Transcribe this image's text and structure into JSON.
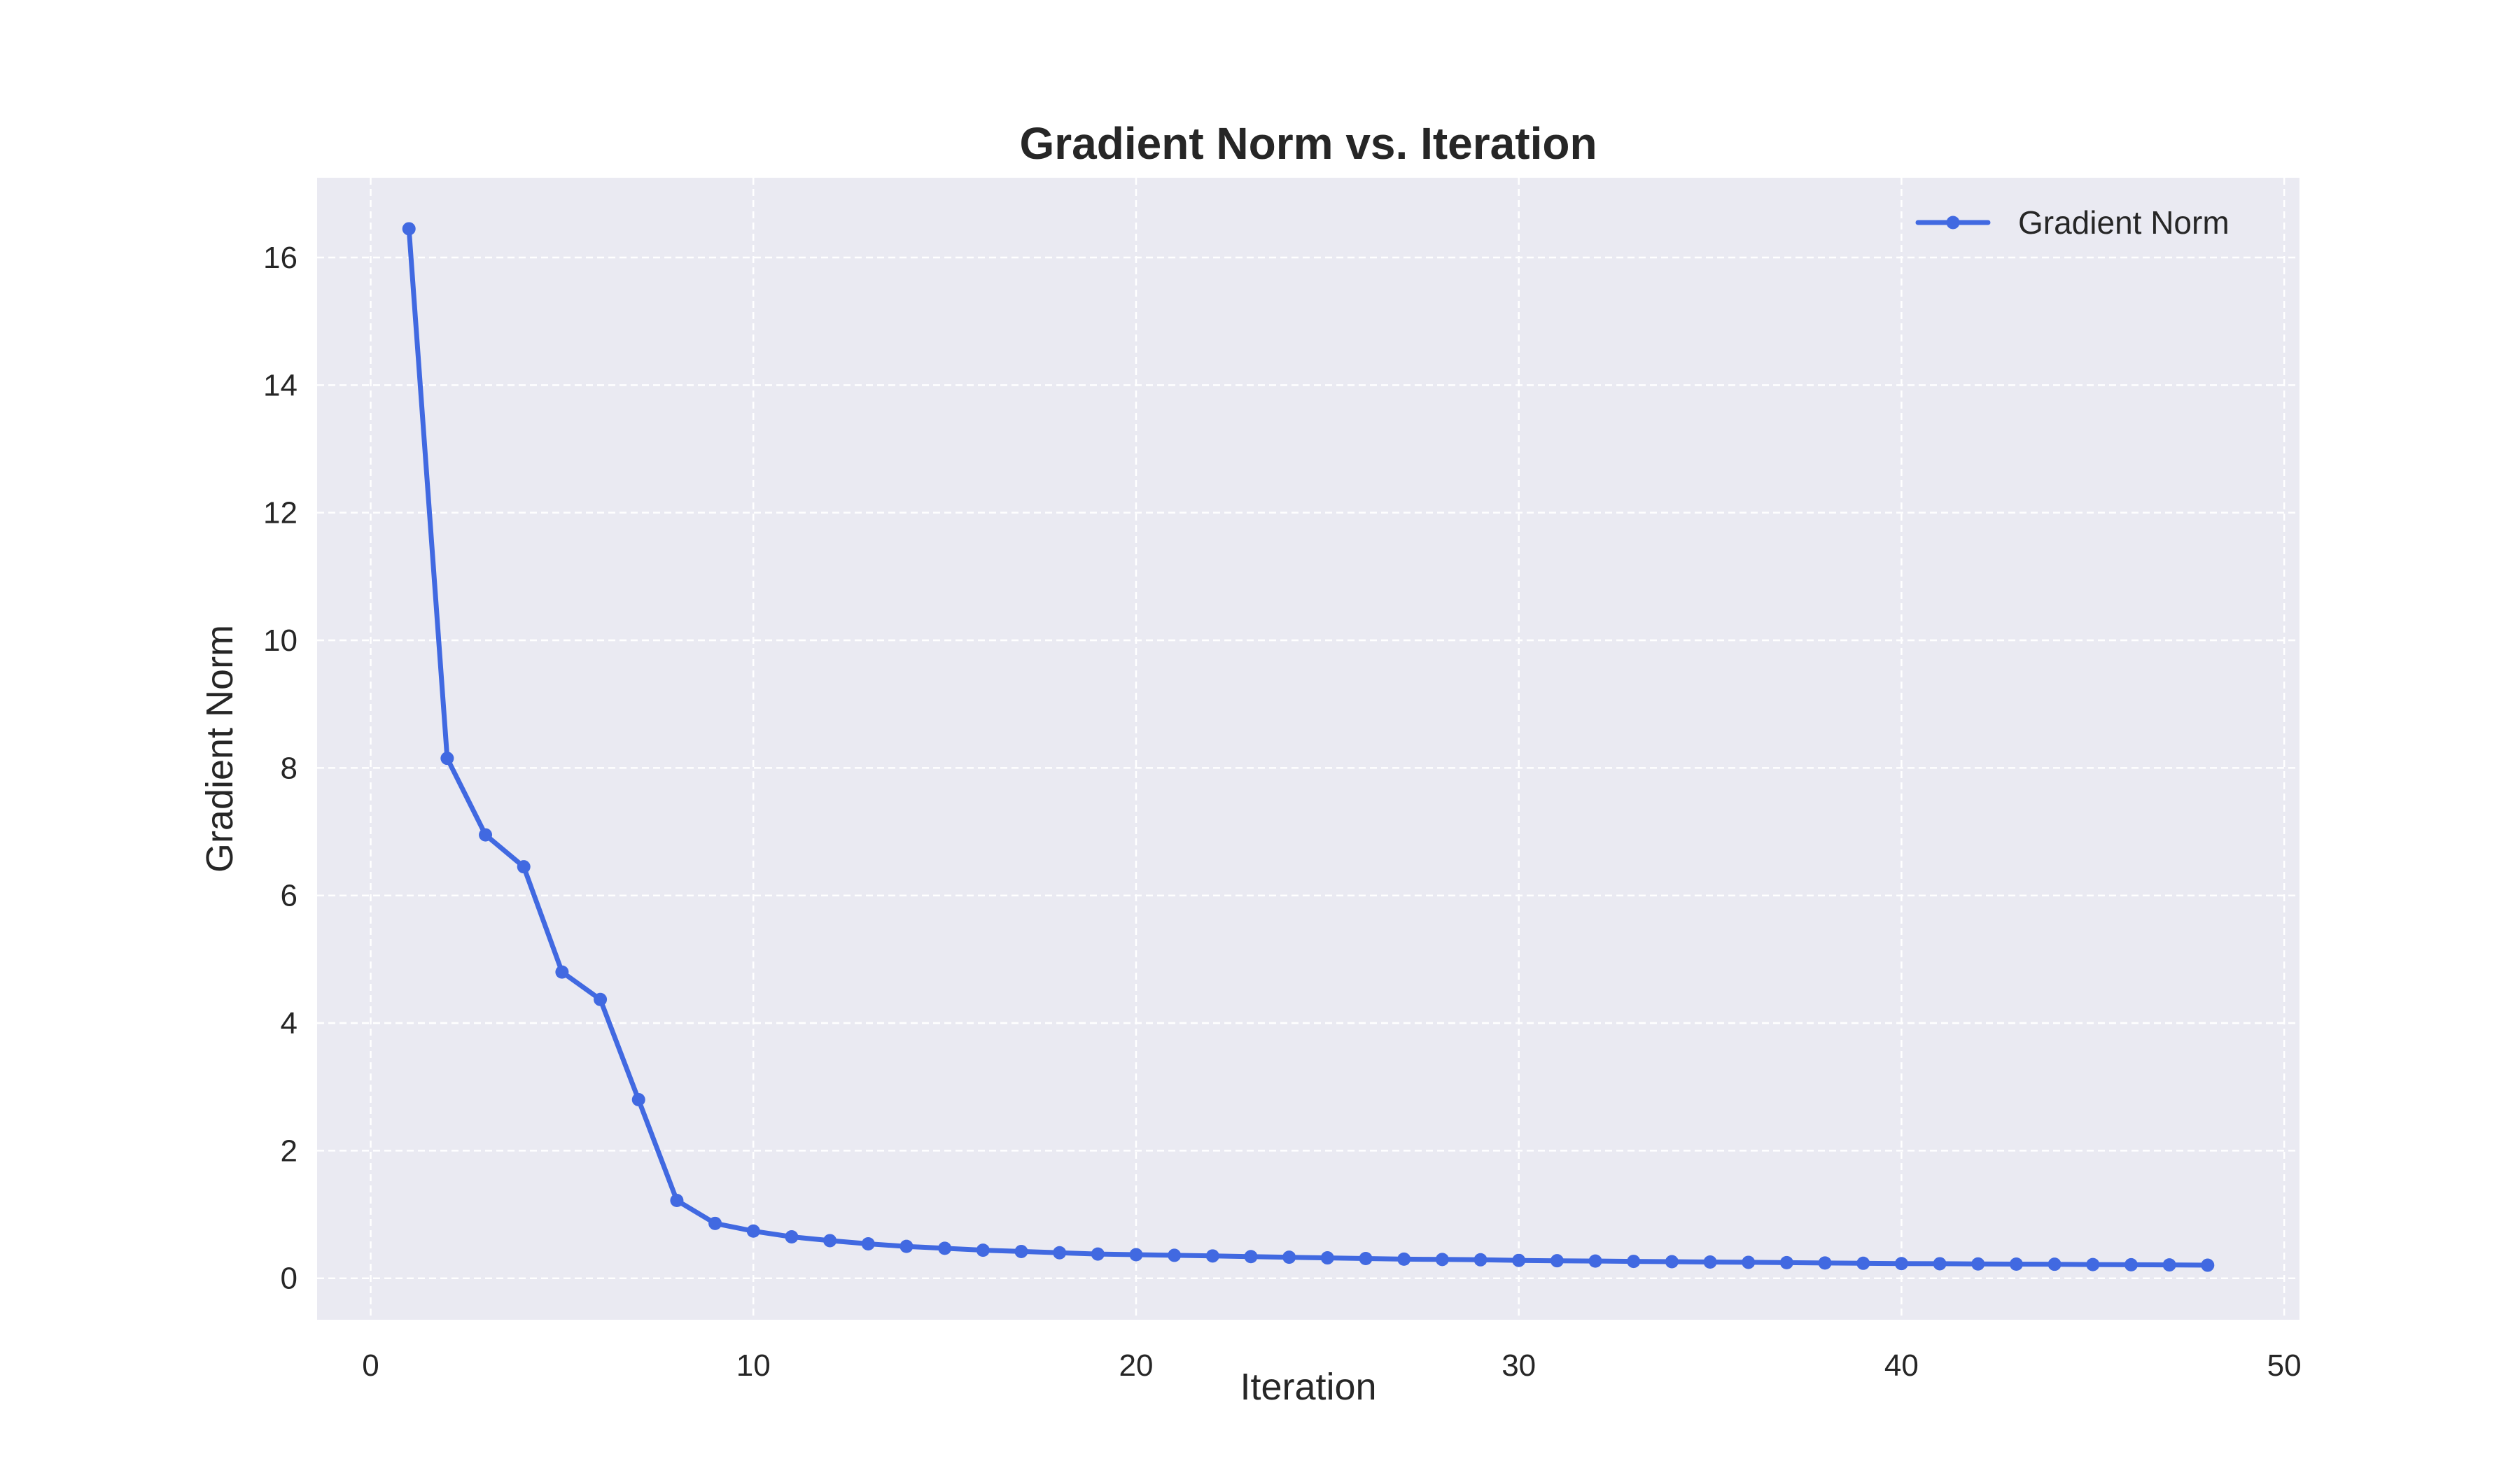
{
  "chart_data": {
    "type": "line",
    "title": "Gradient Norm vs. Iteration",
    "xlabel": "Iteration",
    "ylabel": "Gradient Norm",
    "xlim": [
      -1.4,
      50.4
    ],
    "ylim": [
      -0.65,
      17.25
    ],
    "xticks": [
      0,
      10,
      20,
      30,
      40,
      50
    ],
    "yticks": [
      0,
      2,
      4,
      6,
      8,
      10,
      12,
      14,
      16
    ],
    "grid": true,
    "legend_position": "top-right",
    "colors": {
      "line": "#4169E1",
      "plot_background": "#EAEAF2",
      "grid": "#ffffff"
    },
    "series": [
      {
        "name": "Gradient Norm",
        "x": [
          1,
          2,
          3,
          4,
          5,
          6,
          7,
          8,
          9,
          10,
          11,
          12,
          13,
          14,
          15,
          16,
          17,
          18,
          19,
          20,
          21,
          22,
          23,
          24,
          25,
          26,
          27,
          28,
          29,
          30,
          31,
          32,
          33,
          34,
          35,
          36,
          37,
          38,
          39,
          40,
          41,
          42,
          43,
          44,
          45,
          46,
          47,
          48
        ],
        "y": [
          16.45,
          8.15,
          6.95,
          6.45,
          4.8,
          4.37,
          2.8,
          1.22,
          0.86,
          0.74,
          0.65,
          0.59,
          0.54,
          0.5,
          0.47,
          0.44,
          0.42,
          0.4,
          0.38,
          0.37,
          0.36,
          0.35,
          0.34,
          0.33,
          0.32,
          0.31,
          0.3,
          0.295,
          0.29,
          0.28,
          0.275,
          0.27,
          0.265,
          0.26,
          0.255,
          0.25,
          0.245,
          0.24,
          0.235,
          0.23,
          0.228,
          0.225,
          0.222,
          0.22,
          0.215,
          0.212,
          0.21,
          0.205
        ]
      }
    ]
  }
}
